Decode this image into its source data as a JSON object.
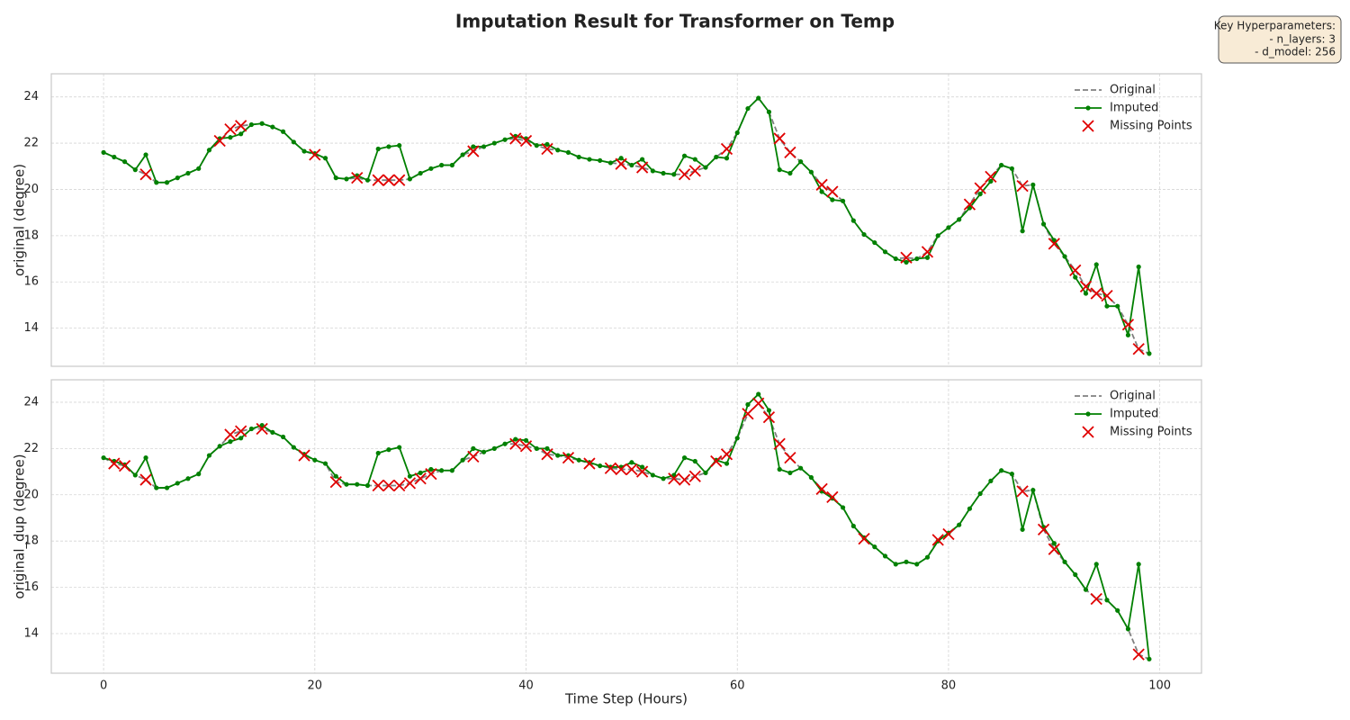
{
  "title": "Imputation Result for Transformer on Temp",
  "annotation": [
    "Key Hyperparameters:",
    "- n_layers: 3",
    "- d_model: 256"
  ],
  "chart_data": [
    {
      "type": "line",
      "ylabel": "original (degree)",
      "legend": "upper right",
      "grid": true,
      "xlim": [
        -4.95,
        103.95
      ],
      "xticks": [
        0,
        20,
        40,
        60,
        80,
        100
      ],
      "ylim": [
        12.35,
        25.0
      ],
      "yticks": [
        14,
        16,
        18,
        20,
        22,
        24
      ],
      "x": [
        0,
        1,
        2,
        3,
        4,
        5,
        6,
        7,
        8,
        9,
        10,
        11,
        12,
        13,
        14,
        15,
        16,
        17,
        18,
        19,
        20,
        21,
        22,
        23,
        24,
        25,
        26,
        27,
        28,
        29,
        30,
        31,
        32,
        33,
        34,
        35,
        36,
        37,
        38,
        39,
        40,
        41,
        42,
        43,
        44,
        45,
        46,
        47,
        48,
        49,
        50,
        51,
        52,
        53,
        54,
        55,
        56,
        57,
        58,
        59,
        60,
        61,
        62,
        63,
        64,
        65,
        66,
        67,
        68,
        69,
        70,
        71,
        72,
        73,
        74,
        75,
        76,
        77,
        78,
        79,
        80,
        81,
        82,
        83,
        84,
        85,
        86,
        87,
        88,
        89,
        90,
        91,
        92,
        93,
        94,
        95,
        96,
        97,
        98,
        99
      ],
      "series": [
        {
          "name": "Original",
          "color": "#808080",
          "style": "dashed",
          "values": [
            21.6,
            21.4,
            21.2,
            20.85,
            20.65,
            20.3,
            20.3,
            20.5,
            20.7,
            20.9,
            21.7,
            22.1,
            22.6,
            22.75,
            22.8,
            22.85,
            22.7,
            22.5,
            22.05,
            21.65,
            21.5,
            21.35,
            20.5,
            20.45,
            20.5,
            20.4,
            20.4,
            20.4,
            20.4,
            20.45,
            20.7,
            20.9,
            21.05,
            21.05,
            21.5,
            21.65,
            21.85,
            22.0,
            22.15,
            22.2,
            22.1,
            21.9,
            21.75,
            21.7,
            21.6,
            21.4,
            21.3,
            21.25,
            21.15,
            21.1,
            21.05,
            20.95,
            20.8,
            20.7,
            20.65,
            20.65,
            20.8,
            20.95,
            21.4,
            21.75,
            22.45,
            23.5,
            23.95,
            23.35,
            22.2,
            21.6,
            21.2,
            20.75,
            20.2,
            19.9,
            19.5,
            18.65,
            18.05,
            17.7,
            17.3,
            17.0,
            17.05,
            17.0,
            17.3,
            18.0,
            18.35,
            18.7,
            19.35,
            20.05,
            20.55,
            21.05,
            20.9,
            20.15,
            20.2,
            18.5,
            17.65,
            17.1,
            16.5,
            15.8,
            15.5,
            15.4,
            14.95,
            14.15,
            13.1,
            12.9
          ]
        },
        {
          "name": "Imputed",
          "color": "#008000",
          "style": "solid-dot",
          "values": [
            21.6,
            21.4,
            21.2,
            20.85,
            21.5,
            20.3,
            20.3,
            20.5,
            20.7,
            20.9,
            21.7,
            22.2,
            22.25,
            22.4,
            22.8,
            22.85,
            22.7,
            22.5,
            22.05,
            21.65,
            21.55,
            21.35,
            20.5,
            20.45,
            20.6,
            20.4,
            21.75,
            21.85,
            21.9,
            20.45,
            20.7,
            20.9,
            21.05,
            21.05,
            21.5,
            21.85,
            21.85,
            22.0,
            22.15,
            22.3,
            22.2,
            21.9,
            21.95,
            21.7,
            21.6,
            21.4,
            21.3,
            21.25,
            21.15,
            21.35,
            21.05,
            21.3,
            20.8,
            20.7,
            20.65,
            21.45,
            21.3,
            20.95,
            21.4,
            21.35,
            22.45,
            23.5,
            23.95,
            23.35,
            20.85,
            20.7,
            21.2,
            20.75,
            19.9,
            19.55,
            19.5,
            18.65,
            18.05,
            17.7,
            17.3,
            17.0,
            16.85,
            17.0,
            17.05,
            18.0,
            18.35,
            18.7,
            19.2,
            19.8,
            20.35,
            21.05,
            20.9,
            18.2,
            20.2,
            18.5,
            17.8,
            17.1,
            16.2,
            15.5,
            16.75,
            14.95,
            14.95,
            13.7,
            16.65,
            12.9
          ]
        },
        {
          "name": "Missing Points",
          "type": "scatter",
          "color": "#e00000",
          "x": [
            4,
            11,
            12,
            13,
            20,
            24,
            26,
            27,
            28,
            35,
            39,
            40,
            42,
            49,
            51,
            55,
            56,
            59,
            64,
            65,
            68,
            69,
            76,
            78,
            82,
            83,
            84,
            87,
            90,
            92,
            93,
            94,
            95,
            97,
            98
          ],
          "values": [
            20.65,
            22.1,
            22.6,
            22.75,
            21.5,
            20.5,
            20.4,
            20.4,
            20.4,
            21.65,
            22.2,
            22.1,
            21.75,
            21.1,
            20.95,
            20.65,
            20.8,
            21.75,
            22.2,
            21.6,
            20.2,
            19.9,
            17.05,
            17.3,
            19.35,
            20.05,
            20.55,
            20.15,
            17.65,
            16.5,
            15.8,
            15.5,
            15.4,
            14.15,
            13.1
          ]
        }
      ]
    },
    {
      "type": "line",
      "ylabel": "original_dup (degree)",
      "xlabel": "Time Step (Hours)",
      "legend": "upper right",
      "grid": true,
      "xlim": [
        -4.95,
        103.95
      ],
      "xticks": [
        0,
        20,
        40,
        60,
        80,
        100
      ],
      "ylim": [
        12.29,
        24.97
      ],
      "yticks": [
        14,
        16,
        18,
        20,
        22,
        24
      ],
      "x": [
        0,
        1,
        2,
        3,
        4,
        5,
        6,
        7,
        8,
        9,
        10,
        11,
        12,
        13,
        14,
        15,
        16,
        17,
        18,
        19,
        20,
        21,
        22,
        23,
        24,
        25,
        26,
        27,
        28,
        29,
        30,
        31,
        32,
        33,
        34,
        35,
        36,
        37,
        38,
        39,
        40,
        41,
        42,
        43,
        44,
        45,
        46,
        47,
        48,
        49,
        50,
        51,
        52,
        53,
        54,
        55,
        56,
        57,
        58,
        59,
        60,
        61,
        62,
        63,
        64,
        65,
        66,
        67,
        68,
        69,
        70,
        71,
        72,
        73,
        74,
        75,
        76,
        77,
        78,
        79,
        80,
        81,
        82,
        83,
        84,
        85,
        86,
        87,
        88,
        89,
        90,
        91,
        92,
        93,
        94,
        95,
        96,
        97,
        98,
        99
      ],
      "series": [
        {
          "name": "Original",
          "color": "#808080",
          "style": "dashed",
          "values": [
            21.6,
            21.35,
            21.25,
            20.85,
            20.65,
            20.3,
            20.3,
            20.5,
            20.7,
            20.9,
            21.7,
            22.1,
            22.6,
            22.75,
            22.85,
            22.85,
            22.7,
            22.5,
            22.05,
            21.7,
            21.5,
            21.35,
            20.55,
            20.45,
            20.45,
            20.4,
            20.4,
            20.4,
            20.4,
            20.5,
            20.7,
            20.9,
            21.05,
            21.05,
            21.5,
            21.65,
            21.85,
            22.0,
            22.2,
            22.2,
            22.1,
            22.0,
            21.75,
            21.7,
            21.6,
            21.5,
            21.35,
            21.25,
            21.15,
            21.1,
            21.1,
            21.0,
            20.85,
            20.7,
            20.7,
            20.65,
            20.8,
            20.95,
            21.45,
            21.75,
            22.45,
            23.5,
            23.95,
            23.35,
            22.2,
            21.6,
            21.15,
            20.75,
            20.25,
            19.9,
            19.45,
            18.65,
            18.1,
            17.75,
            17.35,
            17.0,
            17.1,
            17.0,
            17.3,
            18.05,
            18.3,
            18.7,
            19.4,
            20.05,
            20.6,
            21.05,
            20.9,
            20.15,
            20.2,
            18.5,
            17.65,
            17.1,
            16.55,
            15.9,
            15.5,
            15.45,
            15.0,
            14.2,
            13.1,
            12.9
          ]
        },
        {
          "name": "Imputed",
          "color": "#008000",
          "style": "solid-dot",
          "values": [
            21.6,
            21.45,
            21.3,
            20.85,
            21.6,
            20.3,
            20.3,
            20.5,
            20.7,
            20.9,
            21.7,
            22.1,
            22.3,
            22.45,
            22.85,
            23.0,
            22.7,
            22.5,
            22.05,
            21.75,
            21.5,
            21.35,
            20.8,
            20.45,
            20.45,
            20.4,
            21.8,
            21.95,
            22.05,
            20.8,
            20.95,
            21.1,
            21.05,
            21.05,
            21.5,
            22.0,
            21.85,
            22.0,
            22.2,
            22.4,
            22.35,
            22.0,
            22.0,
            21.7,
            21.7,
            21.5,
            21.4,
            21.25,
            21.2,
            21.2,
            21.4,
            21.2,
            20.85,
            20.7,
            20.85,
            21.6,
            21.45,
            20.95,
            21.5,
            21.35,
            22.45,
            23.9,
            24.35,
            23.65,
            21.1,
            20.95,
            21.15,
            20.75,
            20.15,
            19.85,
            19.45,
            18.65,
            18.15,
            17.75,
            17.35,
            17.0,
            17.1,
            17.0,
            17.3,
            18.0,
            18.35,
            18.7,
            19.4,
            20.05,
            20.6,
            21.05,
            20.9,
            18.5,
            20.2,
            18.6,
            17.9,
            17.1,
            16.55,
            15.9,
            17.0,
            15.45,
            15.0,
            14.2,
            17.0,
            12.9
          ]
        },
        {
          "name": "Missing Points",
          "type": "scatter",
          "color": "#e00000",
          "x": [
            1,
            2,
            4,
            12,
            13,
            15,
            19,
            22,
            26,
            27,
            28,
            29,
            30,
            31,
            35,
            39,
            40,
            42,
            44,
            46,
            48,
            49,
            50,
            51,
            54,
            55,
            56,
            58,
            59,
            61,
            62,
            63,
            64,
            65,
            68,
            69,
            72,
            79,
            80,
            87,
            89,
            90,
            94,
            98
          ],
          "values": [
            21.35,
            21.25,
            20.65,
            22.6,
            22.75,
            22.85,
            21.7,
            20.55,
            20.4,
            20.4,
            20.4,
            20.5,
            20.7,
            20.9,
            21.65,
            22.2,
            22.1,
            21.75,
            21.6,
            21.35,
            21.15,
            21.1,
            21.1,
            21.0,
            20.7,
            20.65,
            20.8,
            21.45,
            21.75,
            23.5,
            23.95,
            23.35,
            22.2,
            21.6,
            20.25,
            19.9,
            18.1,
            18.05,
            18.3,
            20.15,
            18.5,
            17.65,
            15.5,
            13.1
          ]
        }
      ]
    }
  ]
}
